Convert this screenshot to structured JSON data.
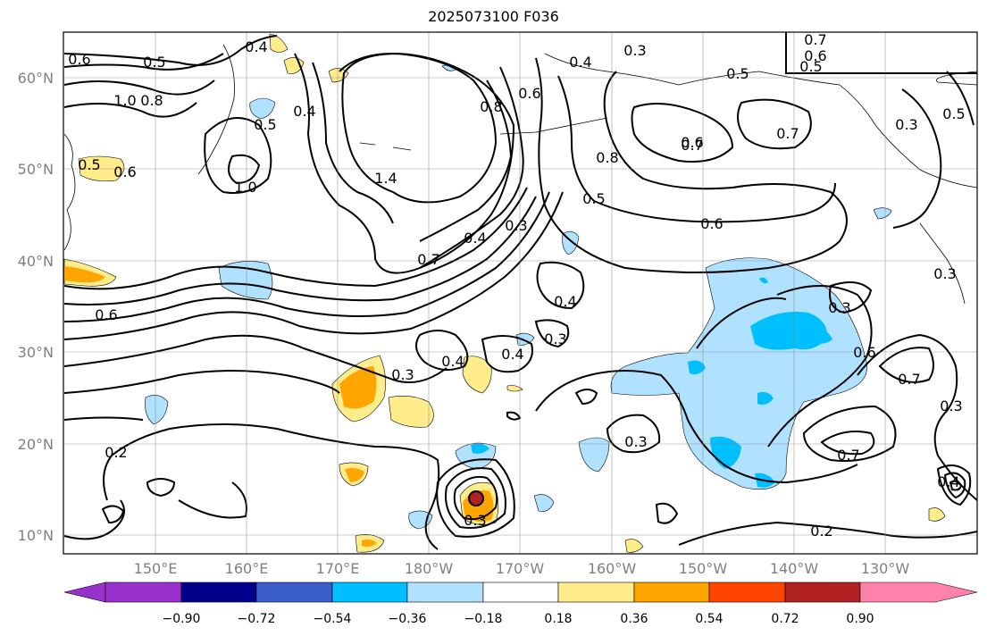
{
  "title": "2025073100 F036",
  "map": {
    "lat_labels": [
      "60°N",
      "50°N",
      "40°N",
      "30°N",
      "20°N",
      "10°N"
    ],
    "lon_labels": [
      "150°E",
      "160°E",
      "170°E",
      "180°W",
      "170°W",
      "160°W",
      "150°W",
      "140°W",
      "130°W"
    ],
    "contour_labels": [
      "0.4",
      "0.5",
      "0.6",
      "0.8",
      "1.0",
      "0.5",
      "0.4",
      "1.0",
      "1.4",
      "0.8",
      "0.6",
      "0.3",
      "0.5",
      "0.7",
      "0.6",
      "0.5",
      "0.6",
      "0.5",
      "0.8",
      "0.5",
      "0.7",
      "0.7",
      "0.3",
      "0.4",
      "0.6",
      "0.4",
      "0.3",
      "0.7",
      "0.4",
      "0.3",
      "0.4",
      "0.3",
      "0.6",
      "0.3",
      "0.3",
      "0.6",
      "0.7",
      "0.3",
      "0.3",
      "0.7",
      "0.2",
      "0.2",
      "0.3",
      "0.4",
      "0.5",
      "0.6",
      "0.4"
    ]
  },
  "colorbar": {
    "colors": [
      "#9932cc",
      "#00008b",
      "#3a5fcd",
      "#00bfff",
      "#b0e2ff",
      "#ffffff",
      "#ffec8b",
      "#ffa500",
      "#ff4500",
      "#b22222",
      "#ff82ab"
    ],
    "tick_labels": [
      "−0.90",
      "−0.72",
      "−0.54",
      "−0.36",
      "−0.18",
      "0.18",
      "0.36",
      "0.54",
      "0.72",
      "0.90"
    ]
  }
}
